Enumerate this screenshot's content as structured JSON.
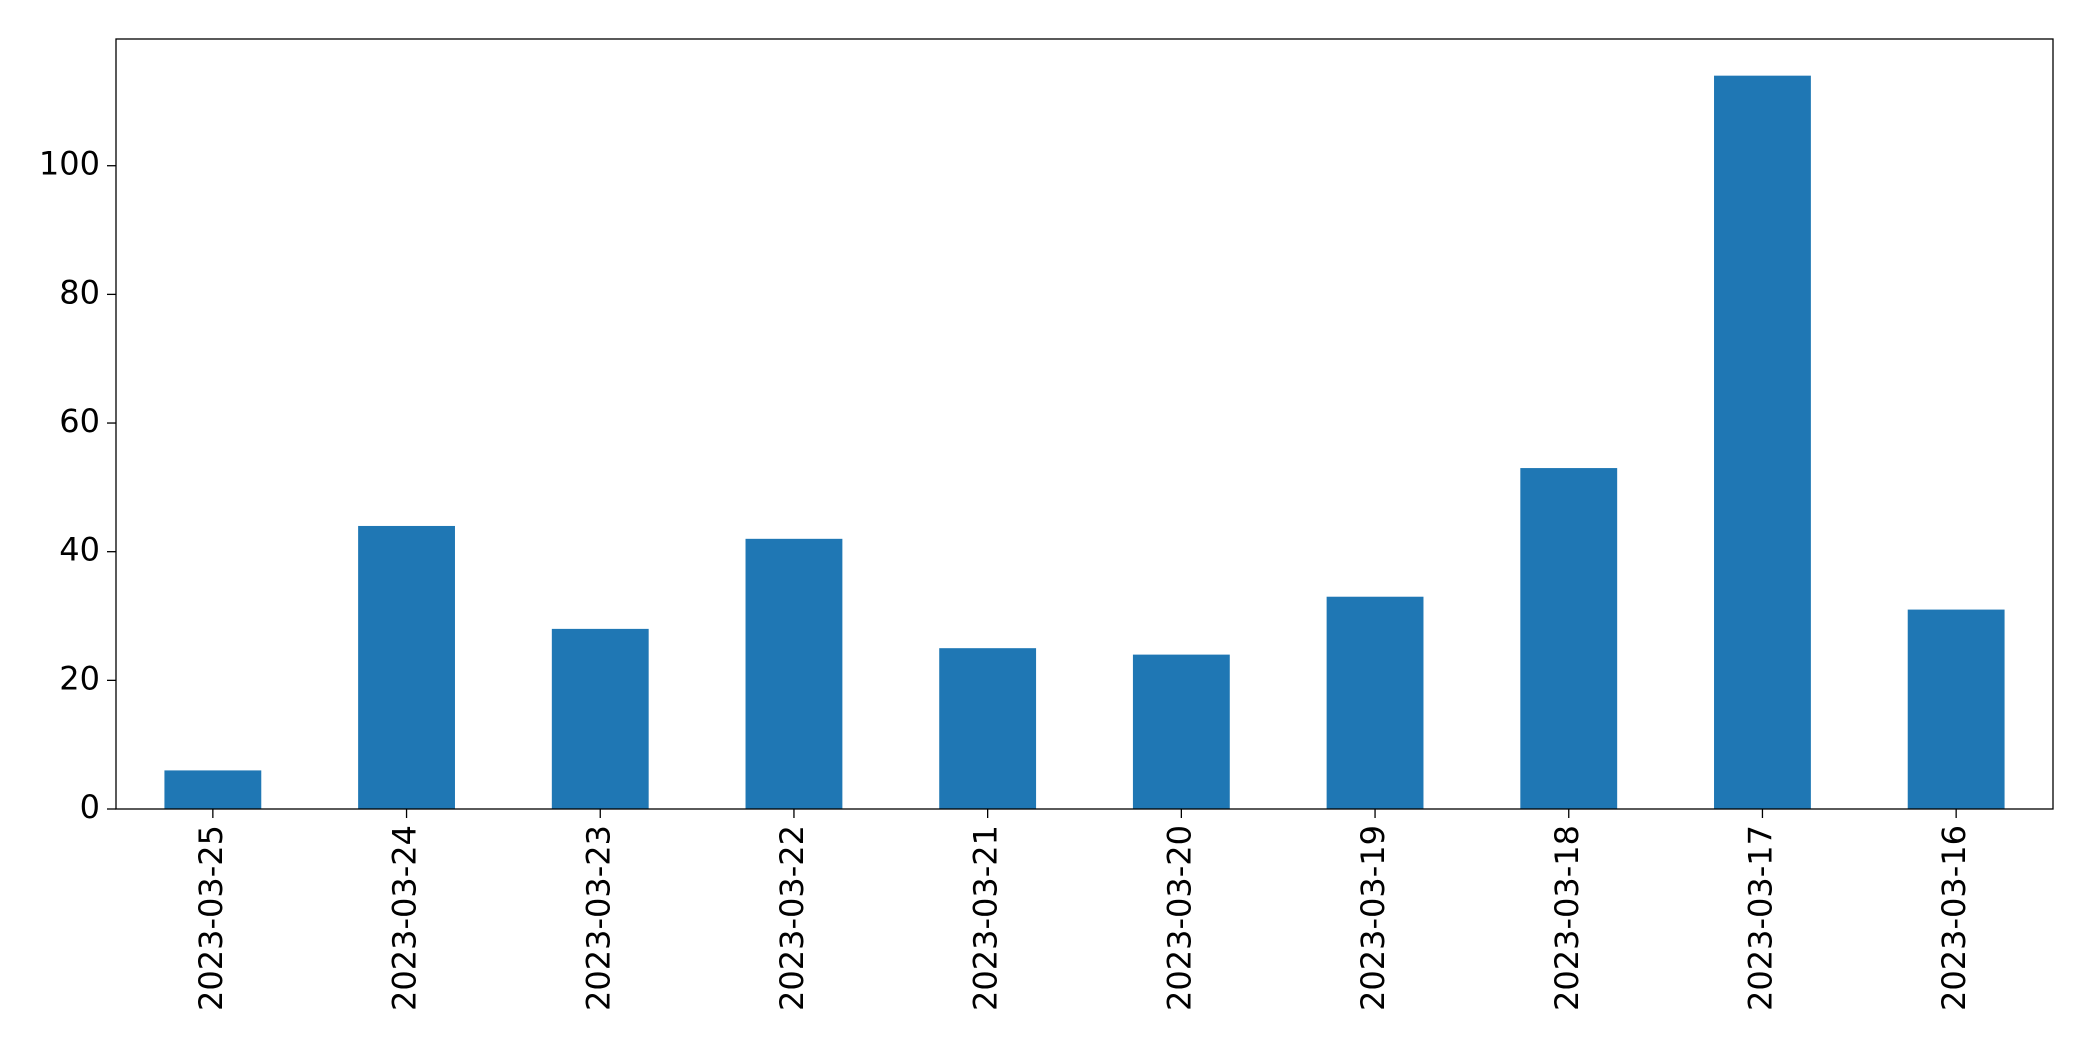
{
  "chart_data": {
    "type": "bar",
    "categories": [
      "2023-03-25",
      "2023-03-24",
      "2023-03-23",
      "2023-03-22",
      "2023-03-21",
      "2023-03-20",
      "2023-03-19",
      "2023-03-18",
      "2023-03-17",
      "2023-03-16"
    ],
    "values": [
      6,
      44,
      28,
      42,
      25,
      24,
      33,
      53,
      114,
      31
    ],
    "color": "#1f77b4",
    "ylim": [
      0,
      119.7
    ],
    "yticks": [
      0,
      20,
      40,
      60,
      80,
      100
    ],
    "grid": false
  }
}
